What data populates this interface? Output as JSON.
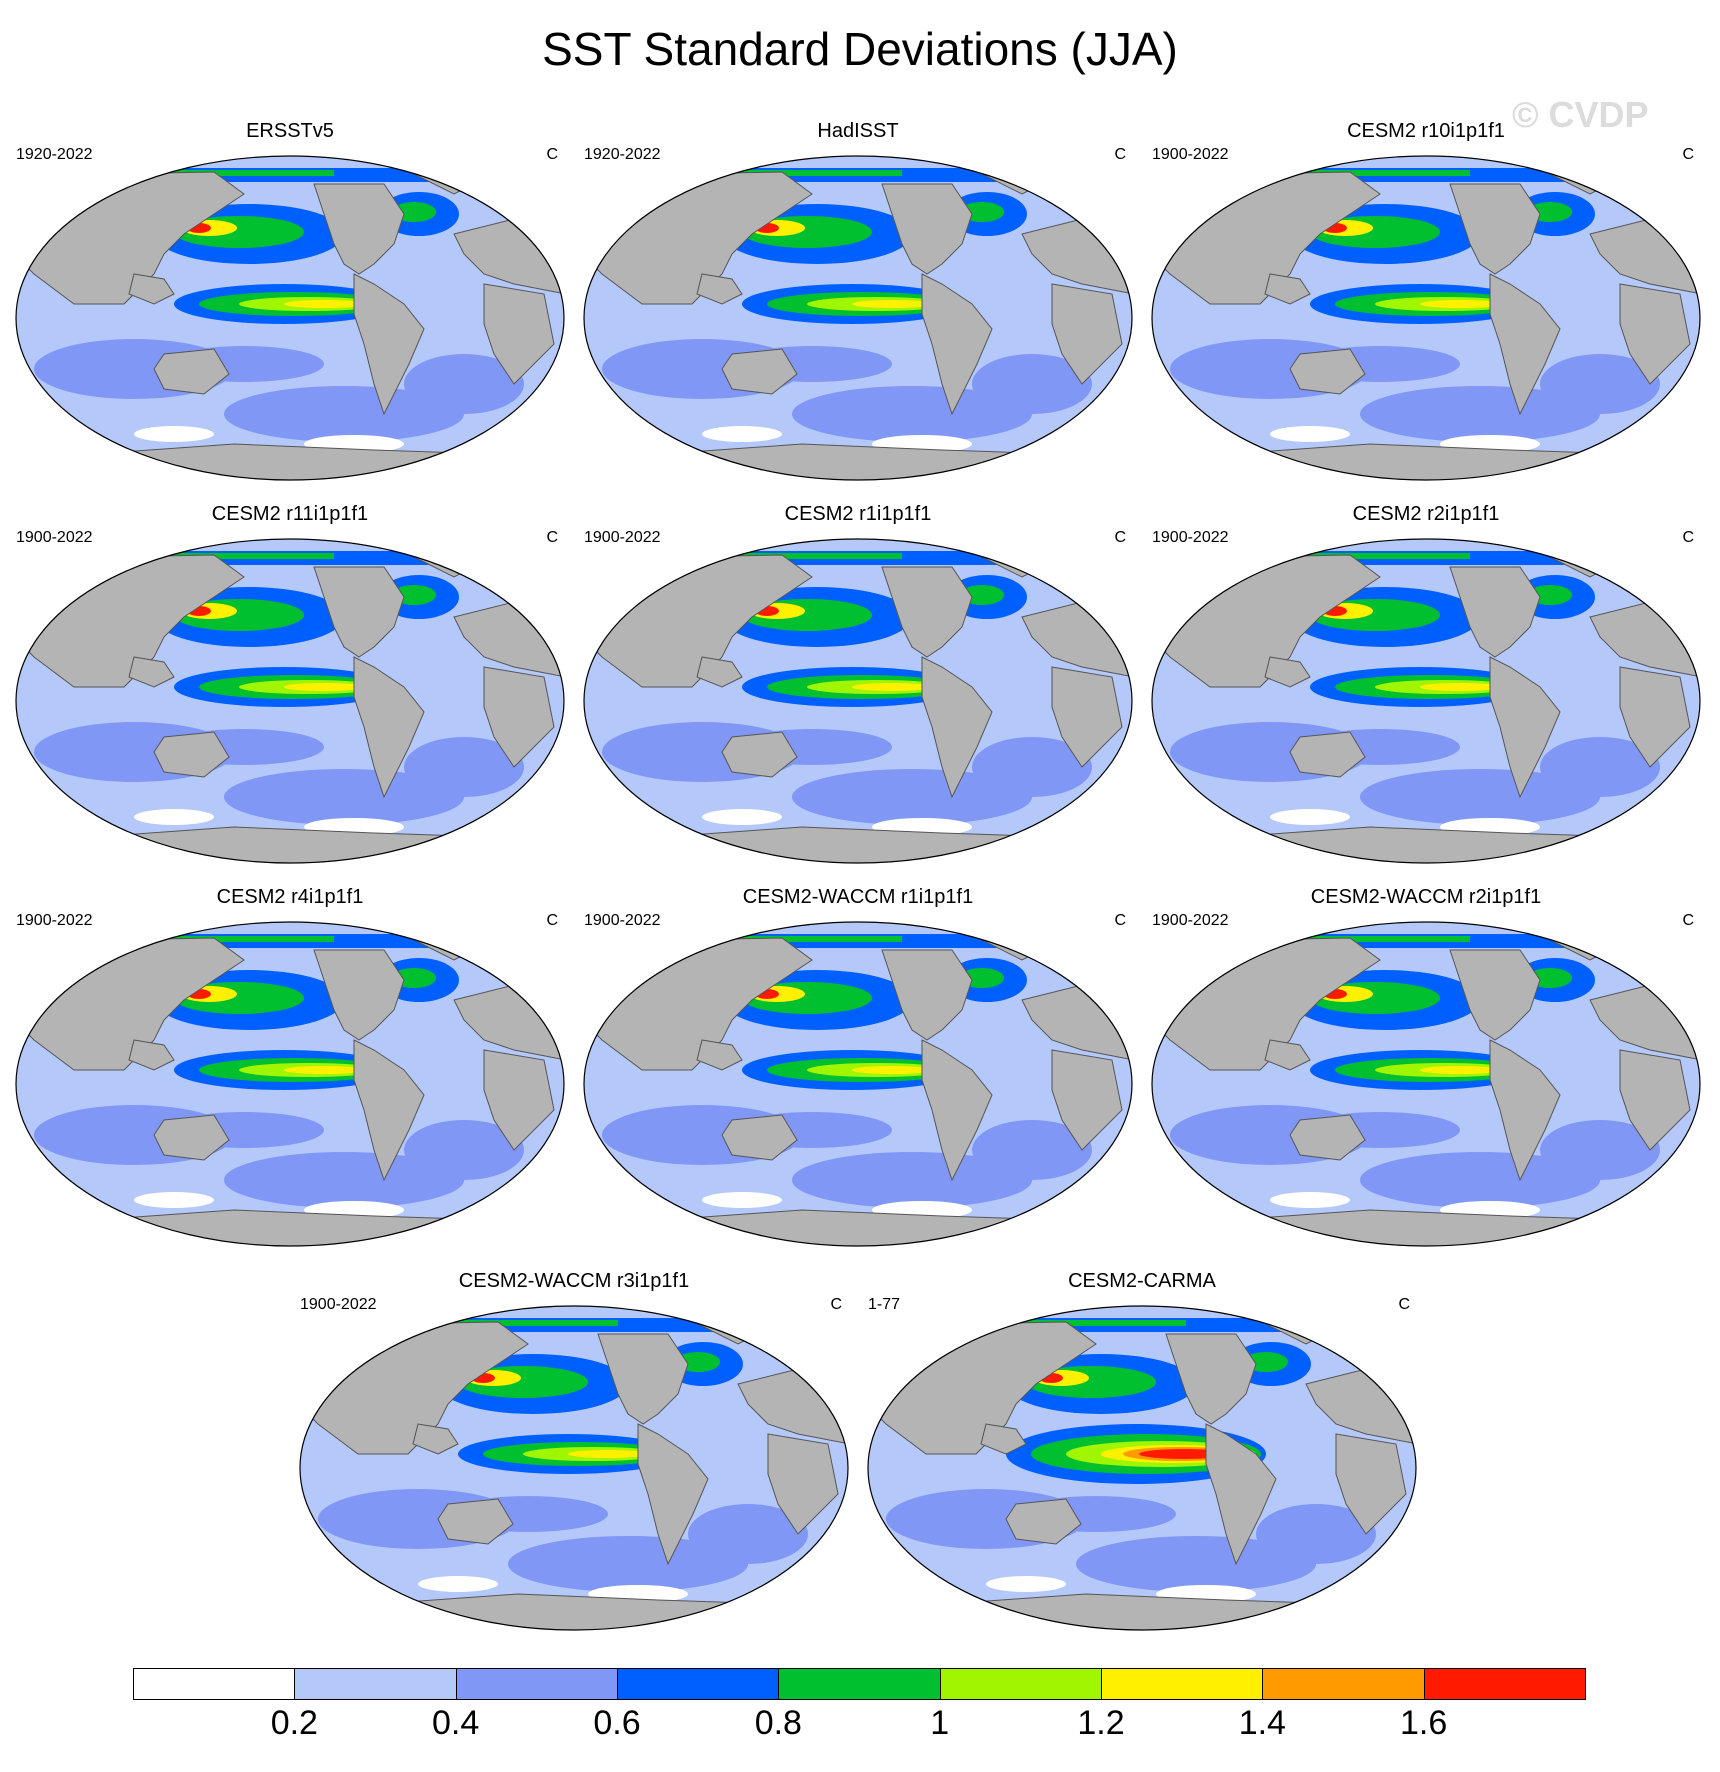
{
  "title": "SST Standard Deviations (JJA)",
  "watermark": "© CVDP",
  "panels": [
    {
      "name": "ERSSTv5",
      "period": "1920-2022",
      "units": "C"
    },
    {
      "name": "HadISST",
      "period": "1920-2022",
      "units": "C"
    },
    {
      "name": "CESM2 r10i1p1f1",
      "period": "1900-2022",
      "units": "C"
    },
    {
      "name": "CESM2 r11i1p1f1",
      "period": "1900-2022",
      "units": "C"
    },
    {
      "name": "CESM2 r1i1p1f1",
      "period": "1900-2022",
      "units": "C"
    },
    {
      "name": "CESM2 r2i1p1f1",
      "period": "1900-2022",
      "units": "C"
    },
    {
      "name": "CESM2 r4i1p1f1",
      "period": "1900-2022",
      "units": "C"
    },
    {
      "name": "CESM2-WACCM r1i1p1f1",
      "period": "1900-2022",
      "units": "C"
    },
    {
      "name": "CESM2-WACCM r2i1p1f1",
      "period": "1900-2022",
      "units": "C"
    },
    {
      "name": "CESM2-WACCM r3i1p1f1",
      "period": "1900-2022",
      "units": "C"
    },
    {
      "name": "CESM2-CARMA",
      "period": "1-77",
      "units": "C"
    }
  ],
  "colorbar": {
    "labels": [
      "0.2",
      "0.4",
      "0.6",
      "0.8",
      "1",
      "1.2",
      "1.4",
      "1.6"
    ],
    "colors": [
      "#ffffff",
      "#b4c8fa",
      "#8097f5",
      "#0060ff",
      "#00c030",
      "#a0f500",
      "#fff000",
      "#ff9a00",
      "#ff1a00"
    ]
  }
}
